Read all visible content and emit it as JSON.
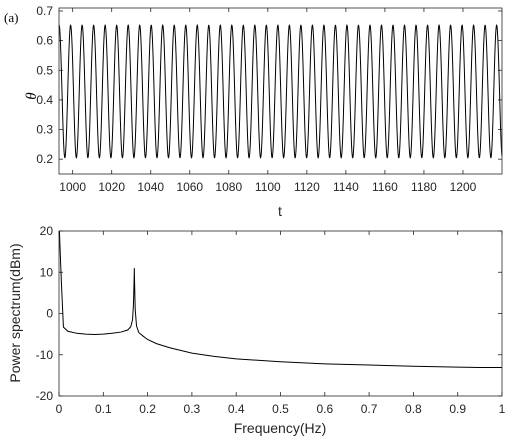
{
  "panel_label": "(a)",
  "chart_data": [
    {
      "type": "line",
      "xlabel": "t",
      "ylabel": "θ",
      "xlim": [
        993,
        1220
      ],
      "ylim": [
        0.15,
        0.71
      ],
      "xticks": [
        1000,
        1020,
        1040,
        1060,
        1080,
        1100,
        1120,
        1140,
        1160,
        1180,
        1200
      ],
      "xtick_labels": [
        "1000",
        "1020",
        "1040",
        "1060",
        "1080",
        "1100",
        "1120",
        "1140",
        "1160",
        "1180",
        "1200"
      ],
      "yticks": [
        0.2,
        0.3,
        0.4,
        0.5,
        0.6,
        0.7
      ],
      "ytick_labels": [
        "0.2",
        "0.3",
        "0.4",
        "0.5",
        "0.6",
        "0.7"
      ],
      "series": [
        {
          "y_min": 0.205,
          "y_max": 0.652,
          "period": 5.9,
          "color": "#000000"
        }
      ],
      "grid": false
    },
    {
      "type": "line",
      "xlabel": "Frequency(Hz)",
      "ylabel": "Power spectrum(dBm)",
      "xlim": [
        0,
        1
      ],
      "ylim": [
        -20,
        20
      ],
      "xticks": [
        0,
        0.1,
        0.2,
        0.3,
        0.4,
        0.5,
        0.6,
        0.7,
        0.8,
        0.9,
        1
      ],
      "xtick_labels": [
        "0",
        "0.1",
        "0.2",
        "0.3",
        "0.4",
        "0.5",
        "0.6",
        "0.7",
        "0.8",
        "0.9",
        "1"
      ],
      "yticks": [
        -20,
        -10,
        0,
        10,
        20
      ],
      "ytick_labels": [
        "-20",
        "-10",
        "0",
        "10",
        "20"
      ],
      "series": [
        {
          "color": "#000000",
          "x": [
            0.001,
            0.003,
            0.006,
            0.01,
            0.02,
            0.04,
            0.06,
            0.08,
            0.1,
            0.12,
            0.14,
            0.155,
            0.162,
            0.166,
            0.168,
            0.1695,
            0.17,
            0.1705,
            0.172,
            0.175,
            0.18,
            0.19,
            0.2,
            0.22,
            0.25,
            0.3,
            0.35,
            0.4,
            0.5,
            0.6,
            0.7,
            0.8,
            0.9,
            0.95,
            1.0
          ],
          "y": [
            20,
            14,
            6,
            -3.3,
            -4.3,
            -4.8,
            -5.0,
            -5.1,
            -5.0,
            -4.8,
            -4.5,
            -4.0,
            -3.2,
            -1.5,
            2.0,
            8.0,
            11.0,
            8.0,
            1.0,
            -3.0,
            -4.6,
            -5.5,
            -6.3,
            -7.3,
            -8.3,
            -9.6,
            -10.4,
            -11.0,
            -11.7,
            -12.2,
            -12.5,
            -12.8,
            -13.0,
            -13.1,
            -13.1
          ]
        }
      ],
      "grid": false
    }
  ]
}
